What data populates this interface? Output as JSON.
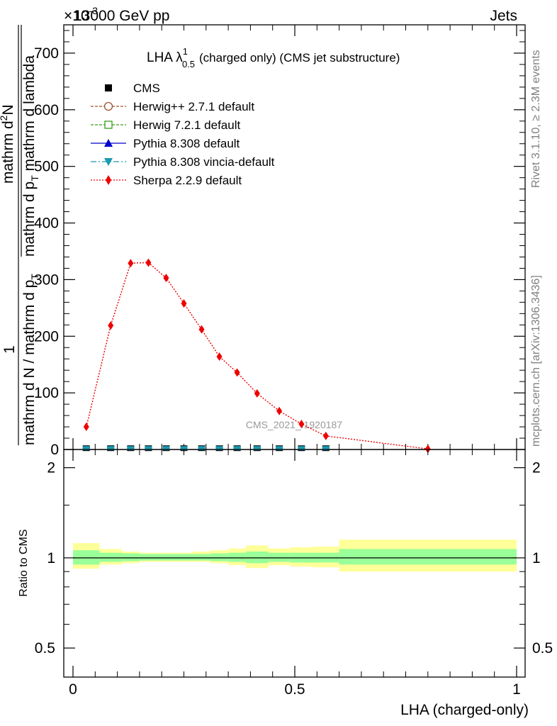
{
  "header": {
    "energy_label": "13000 GeV pp",
    "exponent_label": "×10",
    "exponent_sup": "-3",
    "category_label": "Jets"
  },
  "side_text": {
    "rivet": "Rivet 3.1.10, ≥ 2.3M events",
    "mcplots": "mcplots.cern.ch [arXiv:1306.3436]"
  },
  "watermark": "CMS_2021_I1920187",
  "colors": {
    "cms": "#000000",
    "herwigpp": "#a0522d",
    "herwig7": "#3a9a1a",
    "pythia": "#0000cc",
    "vincia": "#1a9ab0",
    "sherpa": "#ee0000",
    "band_inner": "#99ff99",
    "band_outer": "#ffff99"
  },
  "chart_data": [
    {
      "type": "line",
      "panel": "main",
      "title": "LHA λ",
      "title_sup": "1",
      "title_sub": "0.5",
      "title_suffix": "(charged only) (CMS jet substructure)",
      "ylabel_top": "1",
      "ylabel_top_den": "mathrm d N / mathrm d p",
      "ylabel_top_den_sub": "T",
      "ylabel_num": "mathrm d",
      "ylabel_num_sup": "2",
      "ylabel_num_rest": "N",
      "ylabel_den": "mathrm d p",
      "ylabel_den_sub": "T",
      "ylabel_den_rest": " mathrm d lambda",
      "xlim": [
        0,
        1
      ],
      "ylim": [
        0,
        750
      ],
      "y_scale_note": "×10^-3",
      "yticks": [
        0,
        100,
        200,
        300,
        400,
        500,
        600,
        700
      ],
      "ytick_labels": [
        "0",
        "100",
        "200",
        "300",
        "400",
        "500",
        "600",
        "700"
      ],
      "legend_position": "top-left",
      "series": [
        {
          "name": "CMS",
          "key": "cms",
          "marker": "square",
          "x": [
            0.03,
            0.085,
            0.13,
            0.17,
            0.21,
            0.25,
            0.29,
            0.33,
            0.37,
            0.415,
            0.465,
            0.515,
            0.57
          ],
          "values": [
            1,
            1,
            1,
            1,
            1,
            1,
            1,
            1,
            1,
            1,
            1,
            1,
            1
          ]
        },
        {
          "name": "Herwig++ 2.7.1 default",
          "key": "herwigpp",
          "marker": "open-circle",
          "x": [],
          "values": []
        },
        {
          "name": "Herwig 7.2.1 default",
          "key": "herwig7",
          "marker": "open-square",
          "x": [],
          "values": []
        },
        {
          "name": "Pythia 8.308 default",
          "key": "pythia",
          "marker": "triangle-up",
          "x": [],
          "values": []
        },
        {
          "name": "Pythia 8.308 vincia-default",
          "key": "vincia",
          "marker": "triangle-down",
          "x": [
            0.03,
            0.085,
            0.13,
            0.17,
            0.21,
            0.25,
            0.29,
            0.33,
            0.37,
            0.415,
            0.465,
            0.515,
            0.57
          ],
          "values": [
            1,
            1,
            1,
            1,
            1,
            1,
            1,
            1,
            1,
            1,
            1,
            1,
            1
          ]
        },
        {
          "name": "Sherpa 2.2.9 default",
          "key": "sherpa",
          "marker": "diamond",
          "x": [
            0.03,
            0.085,
            0.13,
            0.17,
            0.21,
            0.25,
            0.29,
            0.33,
            0.37,
            0.415,
            0.465,
            0.515,
            0.57,
            0.8
          ],
          "values": [
            40,
            219,
            329,
            330,
            303,
            258,
            212,
            164,
            136,
            99,
            68,
            45,
            24,
            1
          ]
        }
      ]
    },
    {
      "type": "area",
      "panel": "ratio",
      "ylabel": "Ratio to CMS",
      "xlabel": "LHA (charged-only)",
      "xlim": [
        0,
        1
      ],
      "ylim": [
        0.4,
        2.3
      ],
      "y_scale": "log",
      "yticks": [
        0.5,
        1,
        2
      ],
      "ytick_labels": [
        "0.5",
        "1",
        "2"
      ],
      "xticks": [
        0,
        0.5,
        1
      ],
      "xtick_labels": [
        "0",
        "0.5",
        "1"
      ],
      "bin_edges": [
        0,
        0.06,
        0.11,
        0.15,
        0.19,
        0.23,
        0.27,
        0.31,
        0.35,
        0.39,
        0.44,
        0.49,
        0.54,
        0.6,
        1.0
      ],
      "band_inner_low": [
        0.95,
        0.97,
        0.975,
        0.98,
        0.98,
        0.98,
        0.98,
        0.975,
        0.97,
        0.96,
        0.97,
        0.965,
        0.965,
        0.95
      ],
      "band_inner_high": [
        1.06,
        1.04,
        1.035,
        1.03,
        1.03,
        1.03,
        1.03,
        1.035,
        1.04,
        1.05,
        1.04,
        1.04,
        1.04,
        1.07
      ],
      "band_outer_low": [
        0.92,
        0.95,
        0.96,
        0.97,
        0.97,
        0.97,
        0.97,
        0.96,
        0.945,
        0.925,
        0.945,
        0.935,
        0.93,
        0.9
      ],
      "band_outer_high": [
        1.12,
        1.07,
        1.05,
        1.04,
        1.04,
        1.04,
        1.05,
        1.06,
        1.075,
        1.1,
        1.075,
        1.085,
        1.09,
        1.15
      ],
      "reference_line": 1
    }
  ]
}
